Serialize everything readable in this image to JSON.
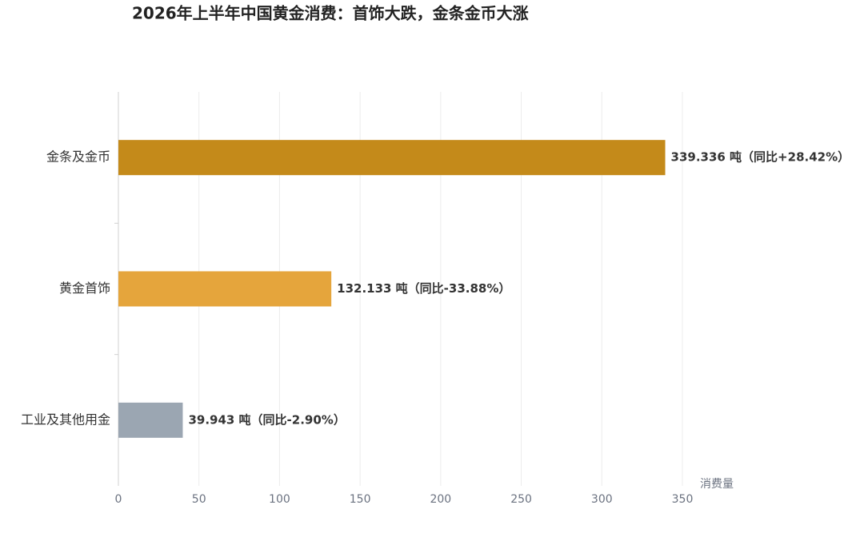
{
  "chart_data": {
    "type": "hbar",
    "title": "2026年上半年中国黄金消费：首饰大跌，金条金币大涨",
    "x_label": "消费量",
    "categories": [
      "金条及金币",
      "黄金首饰",
      "工业及其他用金"
    ],
    "values": [
      339.336,
      132.133,
      39.943
    ],
    "value_labels": [
      "339.336 吨（同比+28.42%）",
      "132.133 吨（同比-33.88%）",
      "39.943 吨（同比-2.90%）"
    ],
    "colors": [
      "#c48a1a",
      "#e5a53c",
      "#9ba6b2"
    ],
    "xlim": [
      0,
      350
    ],
    "xticks": [
      0,
      50,
      100,
      150,
      200,
      250,
      300,
      350
    ],
    "grid": true
  }
}
